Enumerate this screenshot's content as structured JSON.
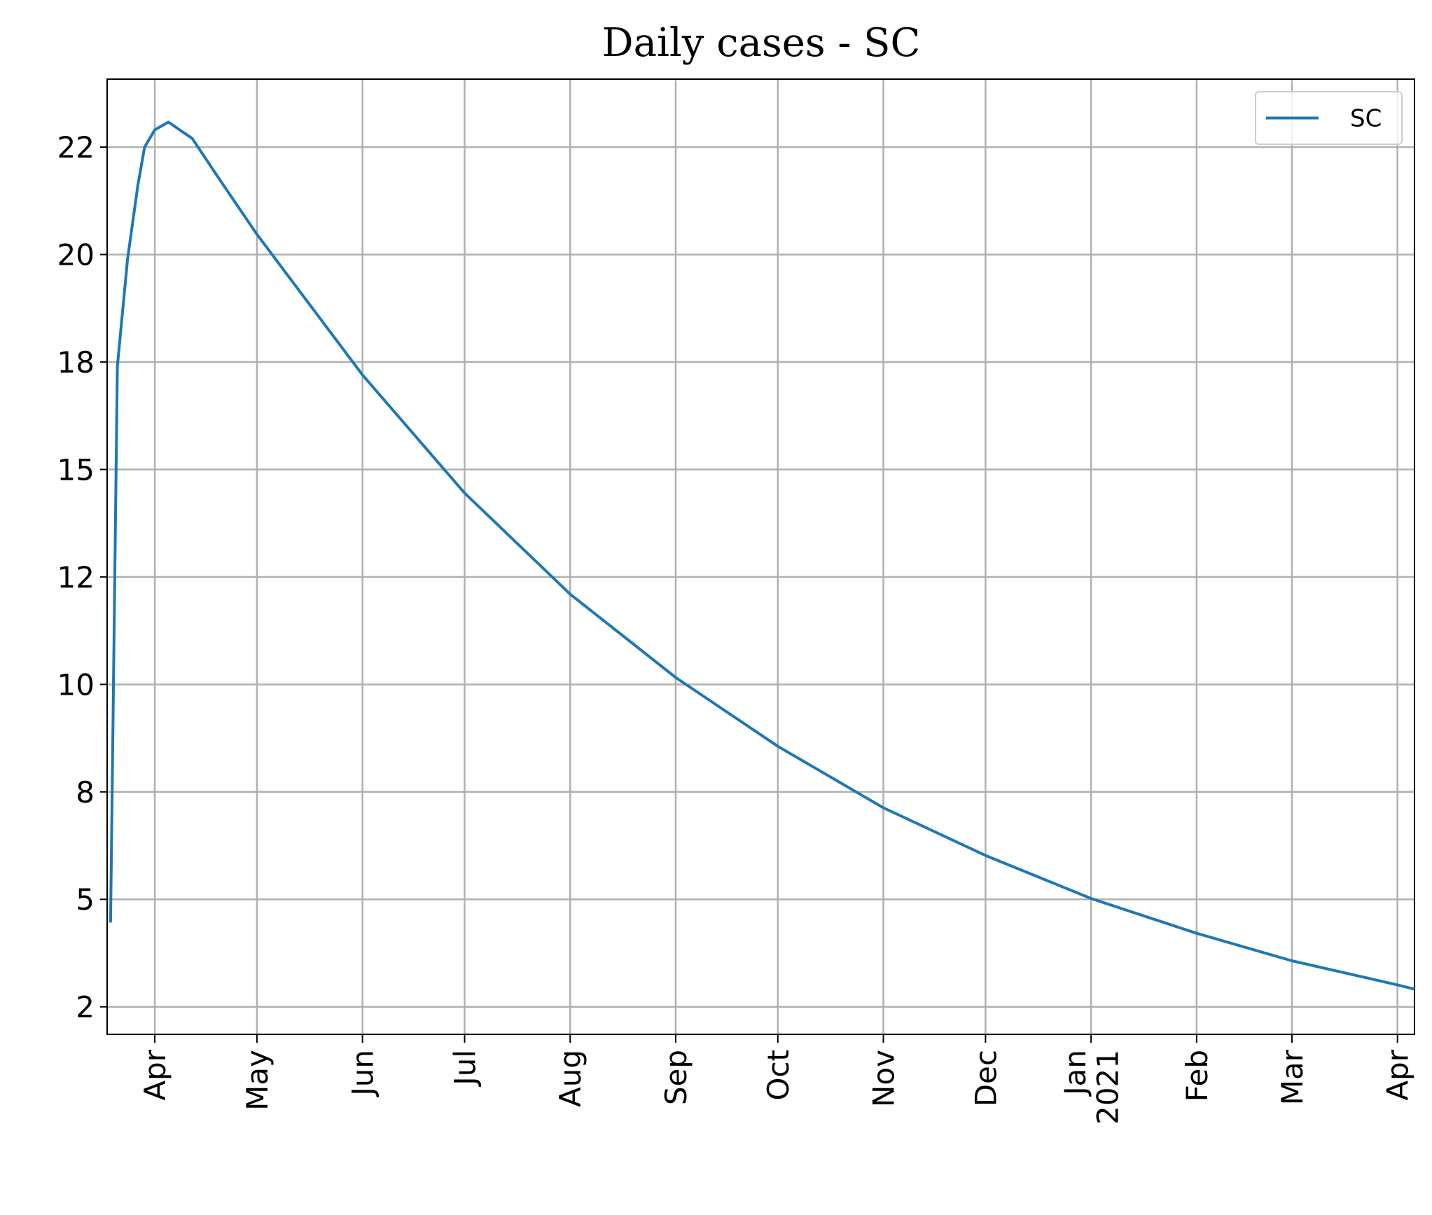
{
  "chart_data": {
    "type": "line",
    "title": "Daily cases - SC",
    "x": [
      "2020-03-19",
      "2020-03-21",
      "2020-03-24",
      "2020-03-27",
      "2020-03-29",
      "2020-04-01",
      "2020-04-05",
      "2020-04-12",
      "2020-04-20",
      "2020-05-01",
      "2020-06-01",
      "2020-07-01",
      "2020-08-01",
      "2020-09-01",
      "2020-10-01",
      "2020-11-01",
      "2020-12-01",
      "2021-01-01",
      "2021-02-01",
      "2021-03-01",
      "2021-04-01",
      "2021-04-06"
    ],
    "series": [
      {
        "name": "SC",
        "color": "#1f77b4",
        "values": [
          4.46,
          17.4,
          19.9,
          21.6,
          22.5,
          22.9,
          23.08,
          22.7,
          21.75,
          20.47,
          17.2,
          14.45,
          12.1,
          10.16,
          8.56,
          7.13,
          6.02,
          5.02,
          4.21,
          3.57,
          3.01,
          2.91
        ]
      }
    ],
    "xlim": [
      "2020-03-18",
      "2021-04-06"
    ],
    "xticks": [
      {
        "value": "2020-04-01",
        "label": "Apr"
      },
      {
        "value": "2020-05-01",
        "label": "May"
      },
      {
        "value": "2020-06-01",
        "label": "Jun"
      },
      {
        "value": "2020-07-01",
        "label": "Jul"
      },
      {
        "value": "2020-08-01",
        "label": "Aug"
      },
      {
        "value": "2020-09-01",
        "label": "Sep"
      },
      {
        "value": "2020-10-01",
        "label": "Oct"
      },
      {
        "value": "2020-11-01",
        "label": "Nov"
      },
      {
        "value": "2020-12-01",
        "label": "Dec"
      },
      {
        "value": "2021-01-01",
        "label": "Jan\n2021"
      },
      {
        "value": "2021-02-01",
        "label": "Feb"
      },
      {
        "value": "2021-03-01",
        "label": "Mar"
      },
      {
        "value": "2021-04-01",
        "label": "Apr"
      }
    ],
    "ylim": [
      1.86,
      24.08
    ],
    "yticks": [
      {
        "value": 2.5,
        "label": "2"
      },
      {
        "value": 5,
        "label": "5"
      },
      {
        "value": 7.5,
        "label": "8"
      },
      {
        "value": 10,
        "label": "10"
      },
      {
        "value": 12.5,
        "label": "12"
      },
      {
        "value": 15,
        "label": "15"
      },
      {
        "value": 17.5,
        "label": "18"
      },
      {
        "value": 20,
        "label": "20"
      },
      {
        "value": 22.5,
        "label": "22"
      }
    ],
    "grid": true,
    "legend": "upper right"
  }
}
